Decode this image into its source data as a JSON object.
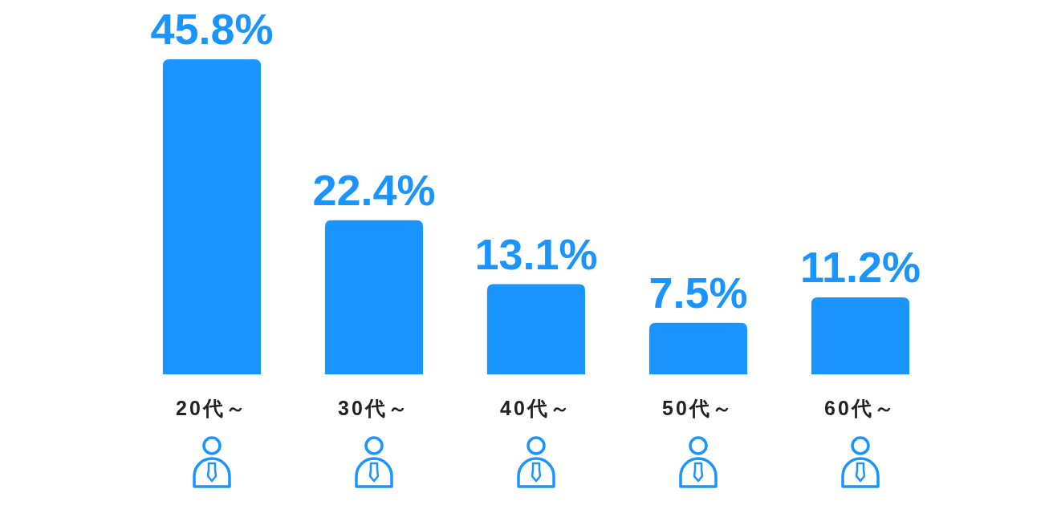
{
  "chart_data": {
    "type": "bar",
    "categories": [
      "20代～",
      "30代～",
      "40代～",
      "50代～",
      "60代～"
    ],
    "values": [
      45.8,
      22.4,
      13.1,
      7.5,
      11.2
    ],
    "color": "#1a94ff",
    "value_labels": [
      "45.8%",
      "22.4%",
      "13.1%",
      "7.5%",
      "11.2%"
    ],
    "tick_labels": "x"
  }
}
